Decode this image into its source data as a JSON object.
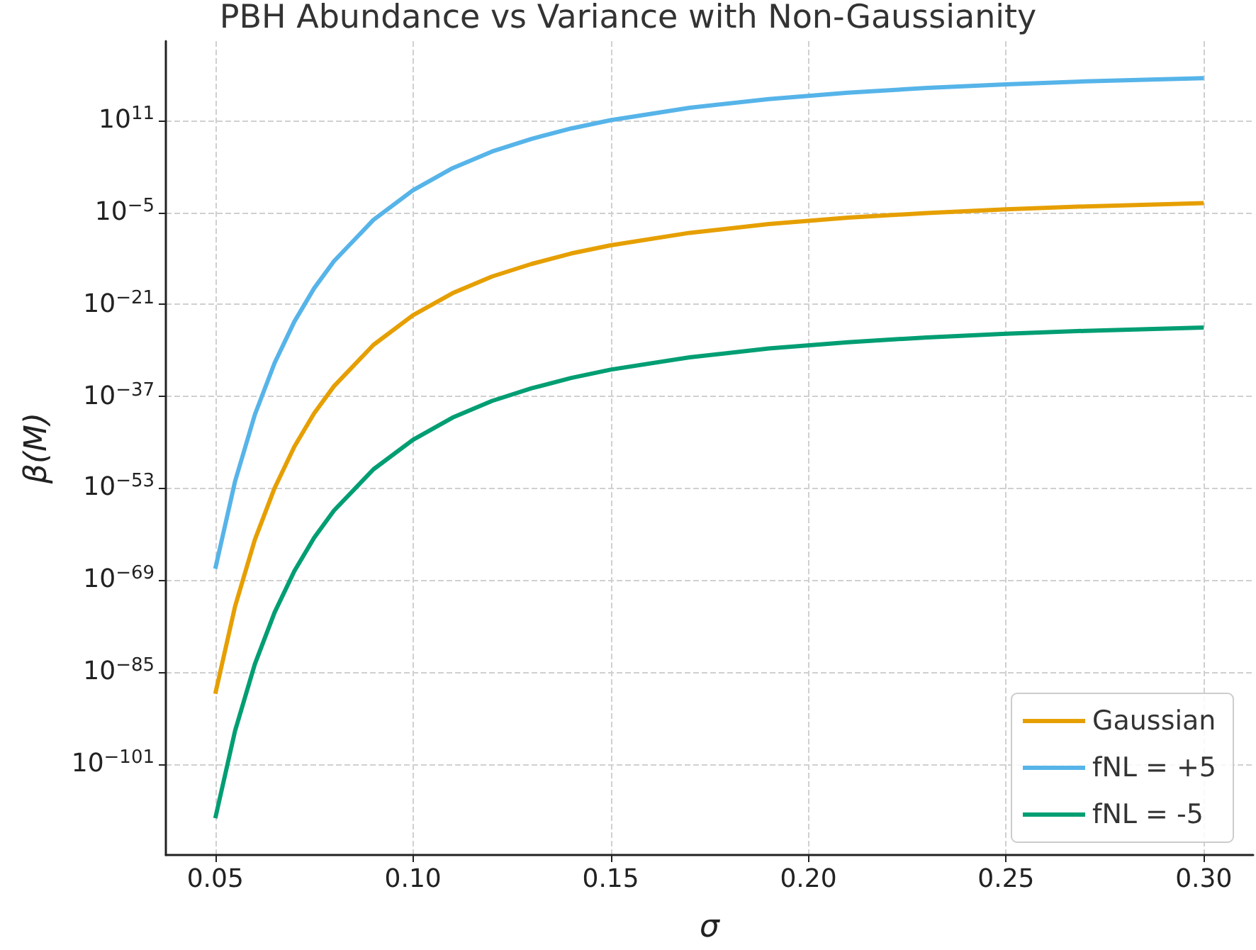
{
  "chart_data": {
    "type": "line",
    "title": "PBH Abundance vs Variance with Non-Gaussianity",
    "xlabel": "σ",
    "ylabel": "β(M)",
    "x": [
      0.05,
      0.055,
      0.06,
      0.065,
      0.07,
      0.075,
      0.08,
      0.09,
      0.1,
      0.11,
      0.12,
      0.13,
      0.14,
      0.15,
      0.17,
      0.19,
      0.21,
      0.23,
      0.25,
      0.27,
      0.3
    ],
    "series": [
      {
        "name": "Gaussian",
        "color": "#e69f00",
        "values": [
          1.8e-89,
          2.8e-74,
          1.1e-62,
          1.1e-53,
          1.8e-46,
          1.1e-40,
          5.6e-36,
          8.9e-29,
          1.3e-23,
          8.9e-20,
          7.1e-17,
          1.1e-14,
          7.1e-13,
          1.9e-11,
          2.8e-09,
          9.3e-08,
          1.2e-06,
          7.9e-06,
          3.5e-05,
          0.00011,
          0.00041
        ]
      },
      {
        "name": "fNL = +5",
        "color": "#56b4e9",
        "values": [
          1e-67,
          1.6e-52,
          6.3e-41,
          6.3e-32,
          1e-24,
          6.3e-19,
          3.2e-14,
          5e-07,
          0.071,
          500,
          400000.0,
          63000000.0,
          4000000000.0,
          110000000000.0,
          16000000000000.0,
          520000000000000.0,
          6600000000000000.0,
          4.5e+16,
          1.9e+17,
          6.2e+17,
          2.3e+18
        ]
      },
      {
        "name": "fNL = -5",
        "color": "#009e73",
        "values": [
          4e-111,
          6.3e-96,
          2.5e-84,
          2.5e-75,
          4e-68,
          2.5e-62,
          1.3e-57,
          2e-50,
          2.8e-45,
          2e-41,
          1.6e-38,
          2.5e-36,
          1.6e-34,
          4.4e-33,
          6.3e-31,
          2.1e-29,
          2.6e-28,
          1.8e-27,
          7.8e-27,
          2.5e-26,
          9.1e-26
        ]
      }
    ],
    "xlim": [
      0.0375,
      0.3125
    ],
    "xticks": [
      {
        "value": 0.05,
        "label": "0.05"
      },
      {
        "value": 0.1,
        "label": "0.10"
      },
      {
        "value": 0.15,
        "label": "0.15"
      },
      {
        "value": 0.2,
        "label": "0.20"
      },
      {
        "value": 0.25,
        "label": "0.25"
      },
      {
        "value": 0.3,
        "label": "0.30"
      }
    ],
    "ylim": [
      1.6e-117,
      6.3e+24
    ],
    "yticks": [
      {
        "value": 1e-101,
        "label": "10$^{−101}$"
      },
      {
        "value": 1e-85,
        "label": "10$^{−85}$"
      },
      {
        "value": 1e-69,
        "label": "10$^{−69}$"
      },
      {
        "value": 1e-53,
        "label": "10$^{−53}$"
      },
      {
        "value": 1e-37,
        "label": "10$^{−37}$"
      },
      {
        "value": 1e-21,
        "label": "10$^{−21}$"
      },
      {
        "value": 1e-05,
        "label": "10$^{−5}$"
      },
      {
        "value": 100000000000.0,
        "label": "10$^{11}$"
      }
    ],
    "log": true,
    "grid": true,
    "legend": "bottom right",
    "marker": "none",
    "line_style": "solid"
  }
}
